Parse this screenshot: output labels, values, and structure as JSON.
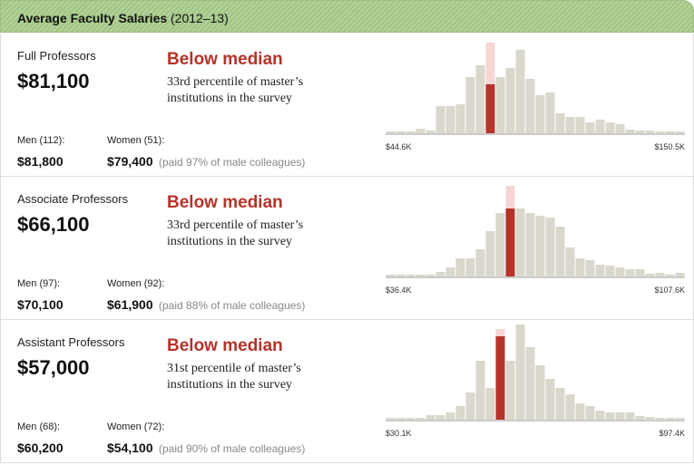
{
  "header": {
    "title": "Average Faculty Salaries",
    "subtitle": "(2012–13)"
  },
  "panels": [
    {
      "rank": "Full Professors",
      "salary": "$81,100",
      "status": "Below median",
      "percentile": [
        "33rd percentile of master’s",
        "institutions in the survey"
      ],
      "men_label": "Men (112):",
      "men_value": "$81,800",
      "women_label": "Women (51):",
      "women_value": "$79,400",
      "women_note": "(paid 97% of male colleagues)",
      "histogram": {
        "type": "bar",
        "range_min": "$44.6K",
        "range_max": "$150.5K",
        "ylim": [
          0,
          110
        ],
        "values": [
          2,
          2,
          2,
          5,
          3,
          30,
          30,
          32,
          62,
          75,
          100,
          62,
          72,
          92,
          60,
          42,
          45,
          22,
          18,
          18,
          12,
          15,
          12,
          10,
          4,
          3,
          3,
          2,
          2,
          2
        ],
        "highlight": {
          "index": 10,
          "value": 54
        }
      }
    },
    {
      "rank": "Associate Professors",
      "salary": "$66,100",
      "status": "Below median",
      "percentile": [
        "33rd percentile of master’s",
        "institutions in the survey"
      ],
      "men_label": "Men (97):",
      "men_value": "$70,100",
      "women_label": "Women (92):",
      "women_value": "$61,900",
      "women_note": "(paid 88% of male colleagues)",
      "histogram": {
        "type": "bar",
        "range_min": "$36.4K",
        "range_max": "$107.6K",
        "ylim": [
          0,
          110
        ],
        "values": [
          2,
          2,
          2,
          2,
          2,
          5,
          10,
          20,
          20,
          30,
          50,
          70,
          100,
          75,
          70,
          67,
          65,
          55,
          32,
          20,
          18,
          13,
          12,
          10,
          8,
          8,
          3,
          4,
          2,
          4
        ],
        "highlight": {
          "index": 12,
          "value": 75
        }
      }
    },
    {
      "rank": "Assistant Professors",
      "salary": "$57,000",
      "status": "Below median",
      "percentile": [
        "31st percentile of master’s",
        "institutions in the survey"
      ],
      "men_label": "Men (68):",
      "men_value": "$60,200",
      "women_label": "Women (72):",
      "women_value": "$54,100",
      "women_note": "(paid 90% of male colleagues)",
      "histogram": {
        "type": "bar",
        "range_min": "$30.1K",
        "range_max": "$97.4K",
        "ylim": [
          0,
          110
        ],
        "values": [
          2,
          2,
          2,
          2,
          5,
          5,
          8,
          15,
          30,
          65,
          35,
          100,
          65,
          105,
          80,
          60,
          45,
          35,
          28,
          18,
          15,
          10,
          8,
          8,
          8,
          4,
          3,
          2,
          2,
          2
        ],
        "highlight": {
          "index": 11,
          "value": 92
        }
      }
    }
  ]
}
